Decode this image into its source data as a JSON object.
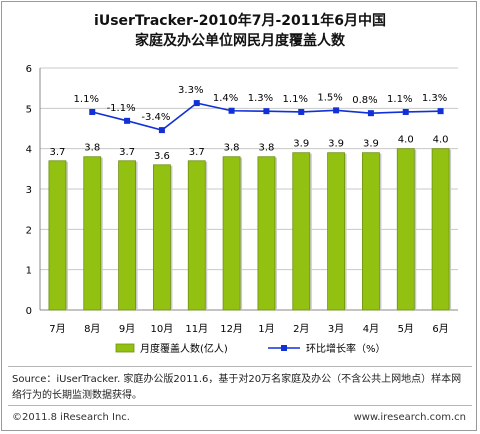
{
  "header": {
    "title_line1": "iUserTracker-2010年7月-2011年6月中国",
    "title_line2": "家庭及办公单位网民月度覆盖人数"
  },
  "chart_data": {
    "type": "bar",
    "categories": [
      "7月",
      "8月",
      "9月",
      "10月",
      "11月",
      "12月",
      "1月",
      "2月",
      "3月",
      "4月",
      "5月",
      "6月"
    ],
    "series": [
      {
        "name": "月度覆盖人数(亿人)",
        "type": "bar",
        "color": "#92c111",
        "values": [
          3.7,
          3.8,
          3.7,
          3.6,
          3.7,
          3.8,
          3.8,
          3.9,
          3.9,
          3.9,
          4.0,
          4.0
        ],
        "labels": [
          "3.7",
          "3.8",
          "3.7",
          "3.6",
          "3.7",
          "3.8",
          "3.8",
          "3.9",
          "3.9",
          "3.9",
          "4.0",
          "4.0"
        ]
      },
      {
        "name": "环比增长率（%）",
        "type": "line",
        "color": "#1030d8",
        "values": [
          null,
          1.1,
          -1.1,
          -3.4,
          3.3,
          1.4,
          1.3,
          1.1,
          1.5,
          0.8,
          1.1,
          1.3
        ],
        "labels": [
          "",
          "1.1%",
          "-1.1%",
          "-3.4%",
          "3.3%",
          "1.4%",
          "1.3%",
          "1.1%",
          "1.5%",
          "0.8%",
          "1.1%",
          "1.3%"
        ]
      }
    ],
    "y_ticks": [
      "0",
      "1",
      "2",
      "3",
      "4",
      "5",
      "6"
    ],
    "ylim": [
      0,
      6
    ],
    "grid": true,
    "legend": "bottom"
  },
  "footer": {
    "source": "Source：iUserTracker. 家庭办公版2011.6，基于对20万名家庭及办公（不含公共上网地点）样本网络行为的长期监测数据获得。",
    "copyright": "©2011.8 iResearch Inc.",
    "website": "www.iresearch.com.cn"
  }
}
